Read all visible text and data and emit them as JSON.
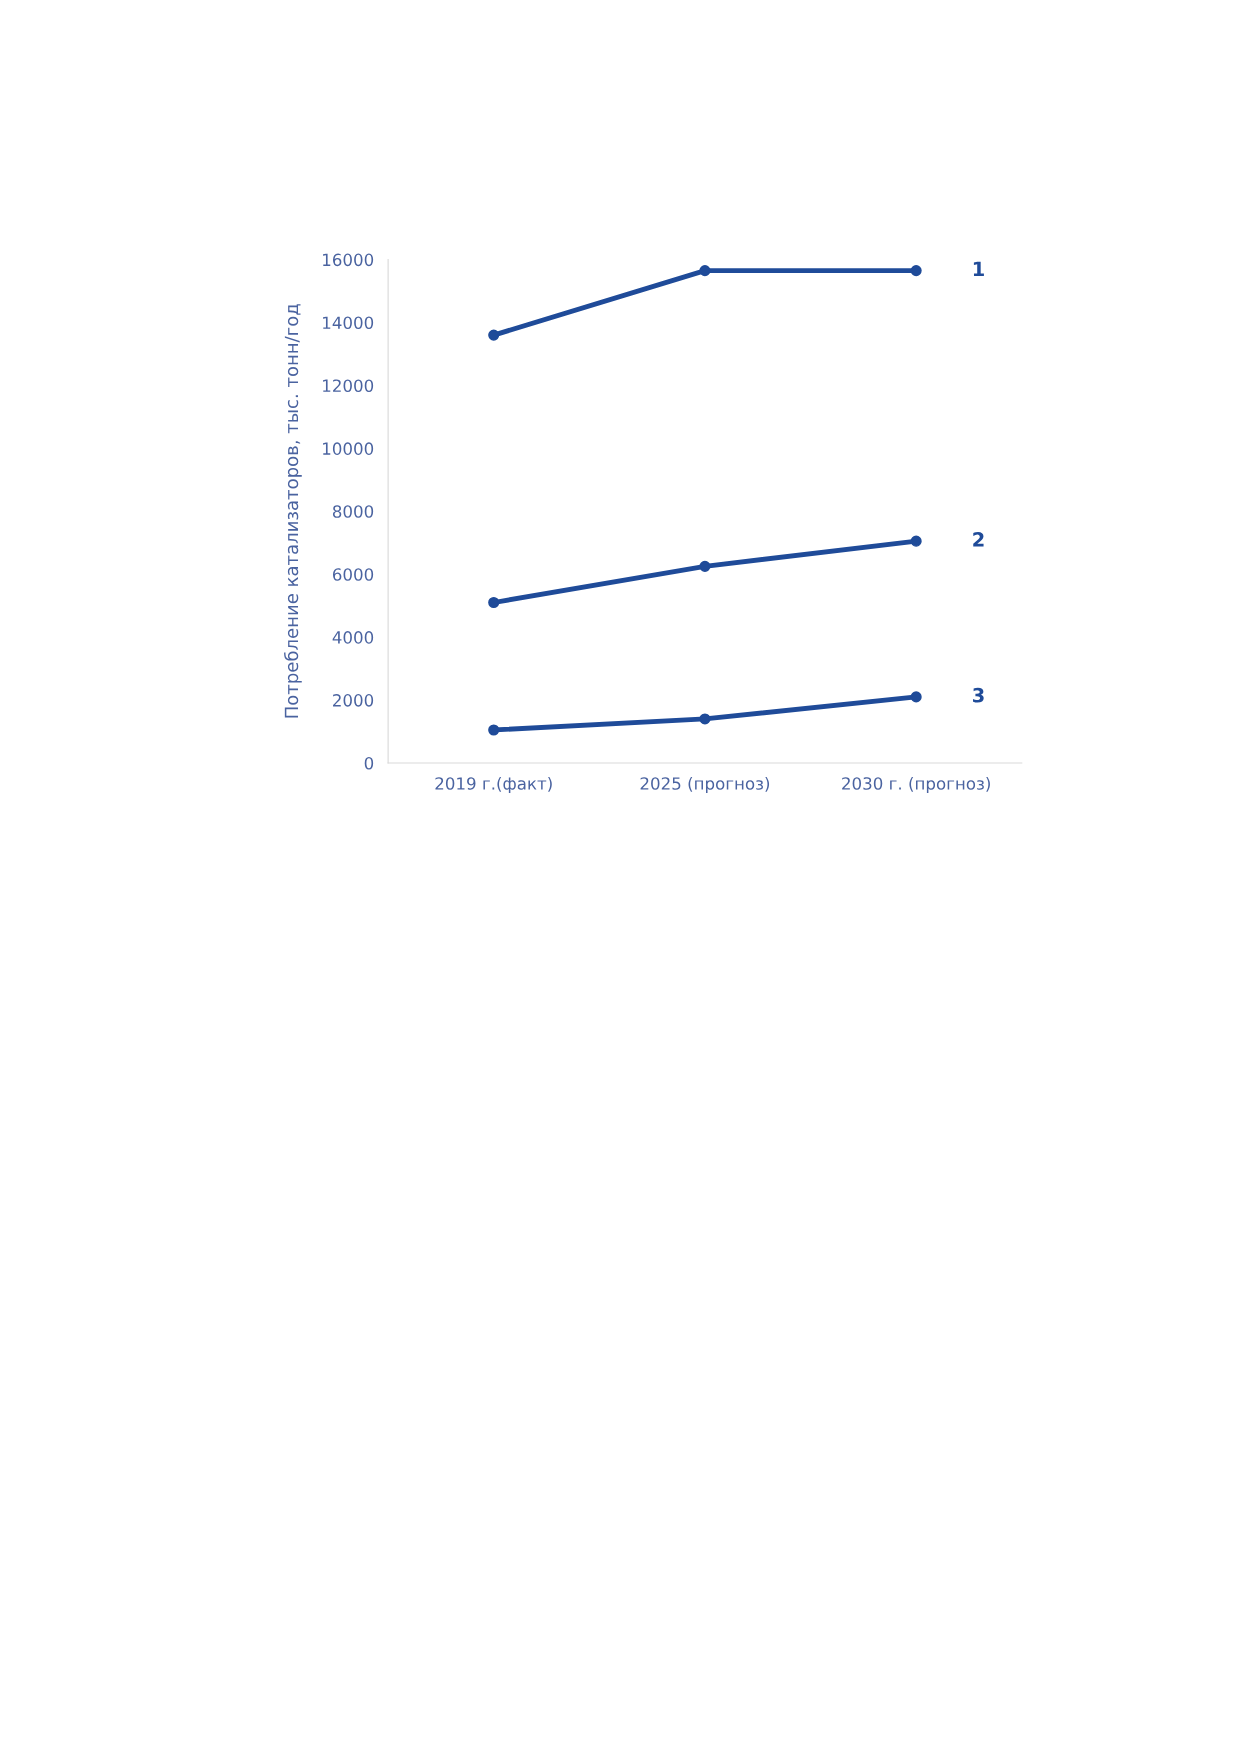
{
  "chart_data": {
    "type": "line",
    "ylabel": "Потребление катализаторов, тыс. тонн/год",
    "categories": [
      "2019 г.(факт)",
      "2025 (прогноз)",
      "2030 г. (прогноз)"
    ],
    "series": [
      {
        "name": "1",
        "color": "#1f4b99",
        "values": [
          13600,
          15650,
          15650
        ]
      },
      {
        "name": "2",
        "color": "#1f4b99",
        "values": [
          5100,
          6250,
          7050
        ]
      },
      {
        "name": "3",
        "color": "#1f4b99",
        "values": [
          1050,
          1400,
          2100
        ]
      }
    ],
    "ylim": [
      0,
      16000
    ],
    "yticks": [
      0,
      2000,
      4000,
      6000,
      8000,
      10000,
      12000,
      14000,
      16000
    ],
    "marker": "circle",
    "line_style": "solid",
    "grid": false,
    "legend": false
  }
}
